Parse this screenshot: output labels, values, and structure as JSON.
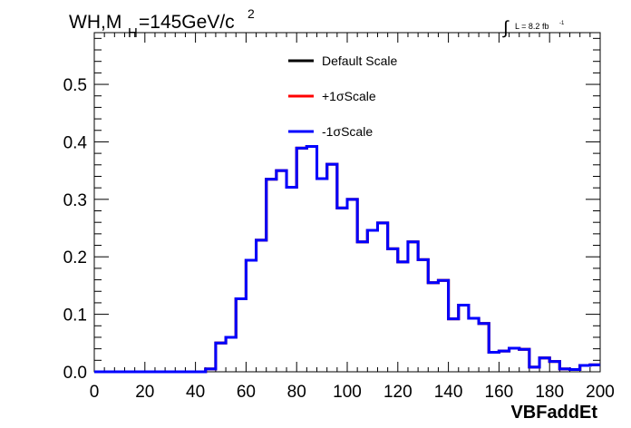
{
  "header": {
    "title_main": "WH,M",
    "title_sub": "H",
    "title_rest": "=145GeV/c",
    "title_sup": "2",
    "lumi_text": "L = 8.2 fb",
    "lumi_sup": "-1"
  },
  "chart_data": {
    "type": "histogram-step",
    "xlabel": "VBFaddEt",
    "ylabel": "",
    "xlim": [
      0,
      200
    ],
    "ylim": [
      0,
      0.59
    ],
    "x_ticks": [
      "0",
      "20",
      "40",
      "60",
      "80",
      "100",
      "120",
      "140",
      "160",
      "180",
      "200"
    ],
    "x_tick_values": [
      0,
      20,
      40,
      60,
      80,
      100,
      120,
      140,
      160,
      180,
      200
    ],
    "y_ticks": [
      "0.0",
      "0.1",
      "0.2",
      "0.3",
      "0.4",
      "0.5"
    ],
    "y_tick_values": [
      0.0,
      0.1,
      0.2,
      0.3,
      0.4,
      0.5
    ],
    "legend_position": "top-center",
    "bin_edges": [
      0,
      4,
      8,
      12,
      16,
      20,
      24,
      28,
      32,
      36,
      40,
      44,
      48,
      52,
      56,
      60,
      64,
      68,
      72,
      76,
      80,
      84,
      88,
      92,
      96,
      100,
      104,
      108,
      112,
      116,
      120,
      124,
      128,
      132,
      136,
      140,
      144,
      148,
      152,
      156,
      160,
      164,
      168,
      172,
      176,
      180,
      184,
      188,
      192,
      196,
      200
    ],
    "series": [
      {
        "name": "Default Scale",
        "color": "#000000",
        "values": [
          0,
          0,
          0,
          0,
          0,
          0,
          0,
          0,
          0,
          0,
          0,
          0.005,
          0.05,
          0.06,
          0.127,
          0.194,
          0.229,
          0.335,
          0.35,
          0.321,
          0.389,
          0.392,
          0.336,
          0.361,
          0.285,
          0.3,
          0.226,
          0.246,
          0.259,
          0.214,
          0.191,
          0.226,
          0.195,
          0.155,
          0.159,
          0.092,
          0.116,
          0.093,
          0.084,
          0.034,
          0.036,
          0.041,
          0.039,
          0.008,
          0.024,
          0.018,
          0.005,
          0.004,
          0.011,
          0.012
        ]
      },
      {
        "name": "+1σScale",
        "color": "#ff0000",
        "values": [
          0,
          0,
          0,
          0,
          0,
          0,
          0,
          0,
          0,
          0,
          0,
          0.005,
          0.05,
          0.06,
          0.127,
          0.194,
          0.229,
          0.335,
          0.35,
          0.321,
          0.389,
          0.392,
          0.336,
          0.361,
          0.285,
          0.3,
          0.226,
          0.246,
          0.259,
          0.214,
          0.191,
          0.226,
          0.195,
          0.155,
          0.159,
          0.092,
          0.116,
          0.093,
          0.084,
          0.034,
          0.036,
          0.041,
          0.039,
          0.008,
          0.024,
          0.018,
          0.005,
          0.004,
          0.011,
          0.012
        ]
      },
      {
        "name": "-1σScale",
        "color": "#0000ff",
        "values": [
          0,
          0,
          0,
          0,
          0,
          0,
          0,
          0,
          0,
          0,
          0,
          0.005,
          0.05,
          0.06,
          0.127,
          0.194,
          0.229,
          0.335,
          0.35,
          0.321,
          0.389,
          0.392,
          0.336,
          0.361,
          0.285,
          0.3,
          0.226,
          0.246,
          0.259,
          0.214,
          0.191,
          0.226,
          0.195,
          0.155,
          0.159,
          0.092,
          0.116,
          0.093,
          0.084,
          0.034,
          0.036,
          0.041,
          0.039,
          0.008,
          0.024,
          0.018,
          0.005,
          0.004,
          0.011,
          0.012
        ]
      }
    ]
  }
}
